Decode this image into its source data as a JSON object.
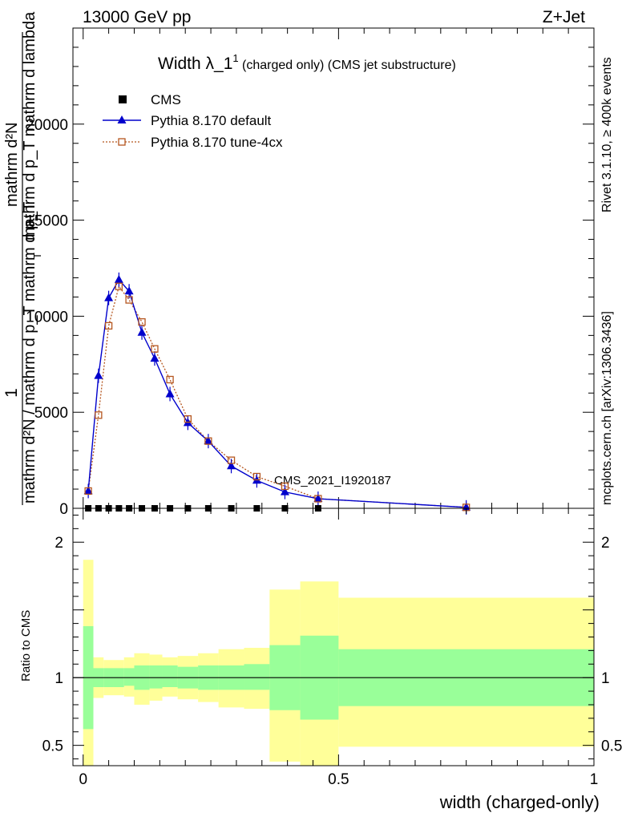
{
  "header": {
    "left": "13000 GeV pp",
    "right": "Z+Jet",
    "side_top": "Rivet 3.1.10, ≥ 400k events",
    "side_bottom": "mcplots.cern.ch [arXiv:1306.3436]"
  },
  "chart_data": [
    {
      "type": "line",
      "title_main": "Width λ_1",
      "title_sup": "1",
      "title_rest": " (charged only) (CMS jet substructure)",
      "watermark": "CMS_2021_I1920187",
      "ylabel": {
        "numerator": "1",
        "denominator": "mathrm d²N / mathrm d p_T mathrm d p_T",
        "overlay": "mathrm d²N",
        "overlay2": "mathrm d p_T mathrm d lambda",
        "sub": "T"
      },
      "xlim": [
        -0.02,
        1.0
      ],
      "ylim": [
        0,
        25000
      ],
      "yticks": [
        0,
        5000,
        10000,
        15000,
        20000
      ],
      "yticklabels": [
        "0",
        "5000",
        "10000",
        "15000",
        "20000"
      ],
      "legend": [
        {
          "name": "CMS",
          "color": "#000000",
          "marker": "square"
        },
        {
          "name": "Pythia 8.170 default",
          "color": "#0000cc",
          "marker": "triangle"
        },
        {
          "name": "Pythia 8.170 tune-4cx",
          "color": "#b5561f",
          "marker": "open-square"
        }
      ],
      "cms_x": [
        0.01,
        0.03,
        0.05,
        0.07,
        0.09,
        0.115,
        0.14,
        0.17,
        0.205,
        0.245,
        0.29,
        0.34,
        0.395,
        0.46
      ],
      "cms_y": [
        0,
        0,
        0,
        0,
        0,
        0,
        0,
        0,
        0,
        0,
        0,
        0,
        0,
        0
      ],
      "default_x": [
        0.01,
        0.03,
        0.05,
        0.07,
        0.09,
        0.115,
        0.14,
        0.17,
        0.205,
        0.245,
        0.29,
        0.34,
        0.395,
        0.46,
        0.75
      ],
      "default_y": [
        900,
        6900,
        10950,
        11900,
        11300,
        9150,
        7800,
        5950,
        4450,
        3500,
        2200,
        1450,
        850,
        500,
        50
      ],
      "tune_x": [
        0.01,
        0.03,
        0.05,
        0.07,
        0.09,
        0.115,
        0.14,
        0.17,
        0.205,
        0.245,
        0.29,
        0.34,
        0.395,
        0.46,
        0.75
      ],
      "tune_y": [
        900,
        4850,
        9500,
        11550,
        10850,
        9700,
        8300,
        6700,
        4650,
        3500,
        2500,
        1650,
        1150,
        500,
        50
      ]
    },
    {
      "type": "area",
      "ylabel": "Ratio to CMS",
      "xlabel": "width (charged-only)",
      "xlim": [
        -0.02,
        1.0
      ],
      "ylim": [
        0.35,
        2.25
      ],
      "xticks": [
        0,
        0.5,
        1
      ],
      "xticklabels": [
        "0",
        "0.5",
        "1"
      ],
      "yticks": [
        0.5,
        1,
        2
      ],
      "yticklabels": [
        "0.5",
        "1",
        "2"
      ],
      "bin_edges": [
        0,
        0.02,
        0.04,
        0.06,
        0.08,
        0.1,
        0.13,
        0.155,
        0.185,
        0.225,
        0.265,
        0.315,
        0.365,
        0.425,
        0.5,
        1.0
      ],
      "green_low": [
        0.62,
        0.93,
        0.93,
        0.93,
        0.94,
        0.91,
        0.92,
        0.93,
        0.92,
        0.91,
        0.91,
        0.91,
        0.76,
        0.69,
        0.79
      ],
      "green_high": [
        1.38,
        1.07,
        1.07,
        1.07,
        1.07,
        1.09,
        1.09,
        1.09,
        1.08,
        1.09,
        1.09,
        1.1,
        1.24,
        1.31,
        1.21
      ],
      "yellow_low": [
        0.25,
        0.85,
        0.87,
        0.87,
        0.86,
        0.8,
        0.83,
        0.86,
        0.84,
        0.82,
        0.78,
        0.77,
        0.38,
        0.3,
        0.49
      ],
      "yellow_high": [
        1.87,
        1.15,
        1.13,
        1.13,
        1.15,
        1.18,
        1.17,
        1.15,
        1.16,
        1.18,
        1.21,
        1.22,
        1.65,
        1.71,
        1.59
      ],
      "ref_line": 1,
      "colors": {
        "green": "#99ff99",
        "yellow": "#ffff99"
      }
    }
  ]
}
